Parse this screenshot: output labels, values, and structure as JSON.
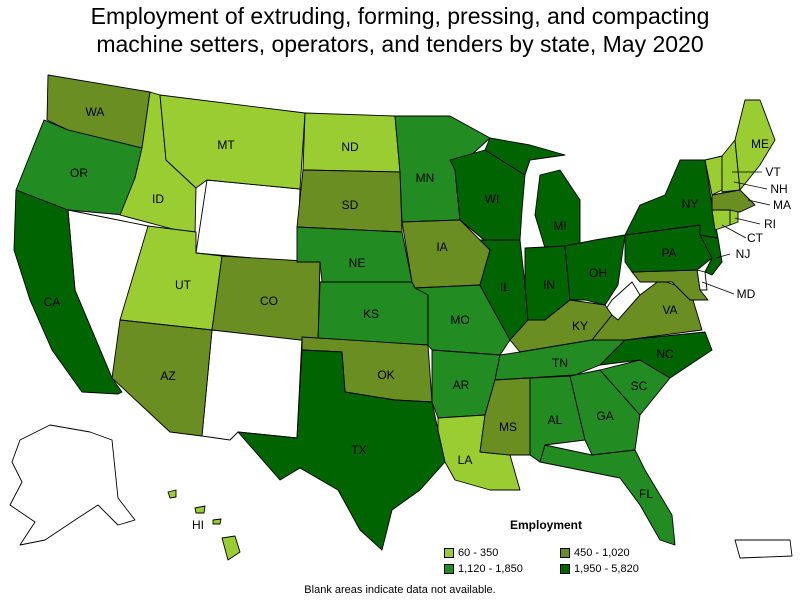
{
  "title_lines": [
    "Employment of extruding, forming, pressing, and compacting",
    "machine setters, operators, and tenders by state, May 2020"
  ],
  "colors": {
    "c1": "#9acd32",
    "c2": "#6b8e23",
    "c3": "#228b22",
    "c4": "#006400",
    "blank": "#ffffff"
  },
  "legend": {
    "title": "Employment",
    "items": [
      {
        "label": "60 - 350",
        "color": "#9acd32"
      },
      {
        "label": "450 - 1,020",
        "color": "#6b8e23"
      },
      {
        "label": "1,120 - 1,850",
        "color": "#228b22"
      },
      {
        "label": "1,950 - 5,820",
        "color": "#006400"
      }
    ]
  },
  "footnote": "Blank areas indicate data not available.",
  "states": {
    "WA": {
      "label": "WA",
      "class": "450 - 1,020"
    },
    "OR": {
      "label": "OR",
      "class": "1,120 - 1,850"
    },
    "CA": {
      "label": "CA",
      "class": "1,950 - 5,820"
    },
    "ID": {
      "label": "ID",
      "class": "60 - 350"
    },
    "MT": {
      "label": "MT",
      "class": "60 - 350"
    },
    "ND": {
      "label": "ND",
      "class": "60 - 350"
    },
    "SD": {
      "label": "SD",
      "class": "450 - 1,020"
    },
    "UT": {
      "label": "UT",
      "class": "60 - 350"
    },
    "CO": {
      "label": "CO",
      "class": "450 - 1,020"
    },
    "AZ": {
      "label": "AZ",
      "class": "450 - 1,020"
    },
    "NE": {
      "label": "NE",
      "class": "1,120 - 1,850"
    },
    "KS": {
      "label": "KS",
      "class": "1,120 - 1,850"
    },
    "OK": {
      "label": "OK",
      "class": "450 - 1,020"
    },
    "TX": {
      "label": "TX",
      "class": "1,950 - 5,820"
    },
    "MN": {
      "label": "MN",
      "class": "1,120 - 1,850"
    },
    "IA": {
      "label": "IA",
      "class": "450 - 1,020"
    },
    "MO": {
      "label": "MO",
      "class": "1,120 - 1,850"
    },
    "AR": {
      "label": "AR",
      "class": "1,120 - 1,850"
    },
    "LA": {
      "label": "LA",
      "class": "60 - 350"
    },
    "WI": {
      "label": "WI",
      "class": "1,950 - 5,820"
    },
    "IL": {
      "label": "IL",
      "class": "1,950 - 5,820"
    },
    "MI": {
      "label": "MI",
      "class": "1,950 - 5,820"
    },
    "IN": {
      "label": "IN",
      "class": "1,950 - 5,820"
    },
    "OH": {
      "label": "OH",
      "class": "1,950 - 5,820"
    },
    "KY": {
      "label": "KY",
      "class": "450 - 1,020"
    },
    "TN": {
      "label": "TN",
      "class": "1,120 - 1,850"
    },
    "MS": {
      "label": "MS",
      "class": "450 - 1,020"
    },
    "AL": {
      "label": "AL",
      "class": "1,120 - 1,850"
    },
    "GA": {
      "label": "GA",
      "class": "1,120 - 1,850"
    },
    "FL": {
      "label": "FL",
      "class": "1,120 - 1,850"
    },
    "SC": {
      "label": "SC",
      "class": "1,120 - 1,850"
    },
    "NC": {
      "label": "NC",
      "class": "1,950 - 5,820"
    },
    "VA": {
      "label": "VA",
      "class": "450 - 1,020"
    },
    "PA": {
      "label": "PA",
      "class": "1,950 - 5,820"
    },
    "NY": {
      "label": "NY",
      "class": "1,950 - 5,820"
    },
    "NJ": {
      "label": "NJ",
      "class": "1,950 - 5,820"
    },
    "MD": {
      "label": "MD",
      "class": "450 - 1,020"
    },
    "ME": {
      "label": "ME",
      "class": "60 - 350"
    },
    "VT": {
      "label": "VT",
      "class": "60 - 350"
    },
    "NH": {
      "label": "NH",
      "class": "60 - 350"
    },
    "MA": {
      "label": "MA",
      "class": "450 - 1,020"
    },
    "RI": {
      "label": "RI",
      "class": "60 - 350"
    },
    "CT": {
      "label": "CT",
      "class": "60 - 350"
    },
    "HI": {
      "label": "HI",
      "class": "60 - 350"
    }
  }
}
